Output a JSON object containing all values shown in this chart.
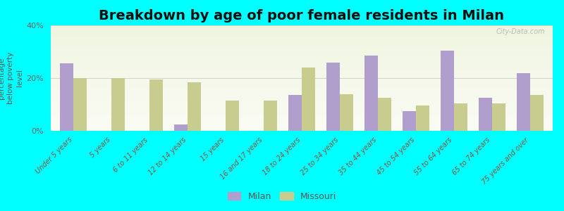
{
  "title": "Breakdown by age of poor female residents in Milan",
  "ylabel": "percentage\nbelow poverty\nlevel",
  "categories": [
    "Under 5 years",
    "5 years",
    "6 to 11 years",
    "12 to 14 years",
    "15 years",
    "16 and 17 years",
    "18 to 24 years",
    "25 to 34 years",
    "35 to 44 years",
    "45 to 54 years",
    "55 to 64 years",
    "65 to 74 years",
    "75 years and over"
  ],
  "milan_values": [
    25.5,
    0,
    0,
    2.5,
    0,
    0,
    13.5,
    26.0,
    28.5,
    7.5,
    30.5,
    12.5,
    22.0
  ],
  "missouri_values": [
    20.0,
    20.0,
    19.5,
    18.5,
    11.5,
    11.5,
    24.0,
    14.0,
    12.5,
    9.5,
    10.5,
    10.5,
    13.5
  ],
  "milan_color": "#b09fcc",
  "missouri_color": "#c8cc8f",
  "ylim": [
    0,
    40
  ],
  "yticks": [
    0,
    20,
    40
  ],
  "ytick_labels": [
    "0%",
    "20%",
    "40%"
  ],
  "bg_color": "#00ffff",
  "title_fontsize": 14,
  "legend_milan": "Milan",
  "legend_missouri": "Missouri",
  "bar_width": 0.35,
  "gradient_top": "#f0f5e0",
  "gradient_bottom": "#fafcf4"
}
